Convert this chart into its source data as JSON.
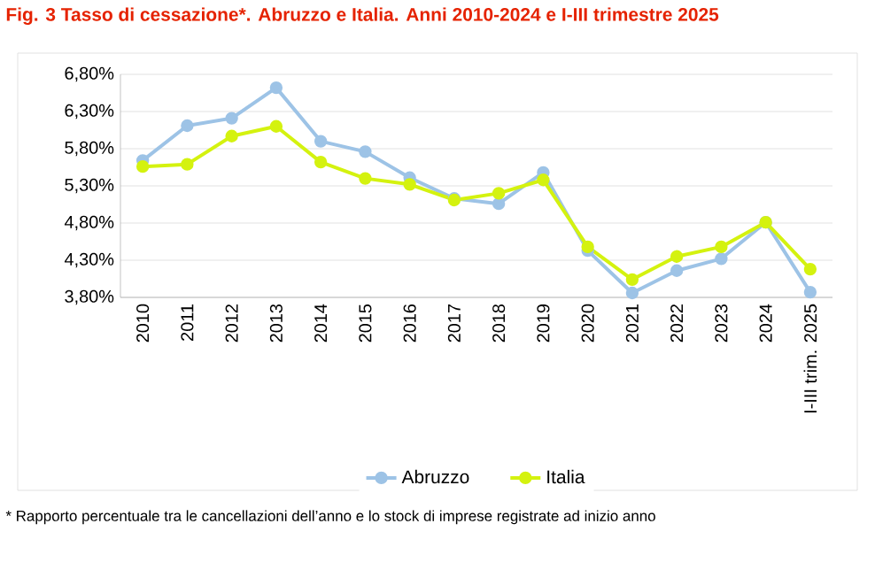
{
  "chart_data": {
    "type": "line",
    "title": "Fig. 3 Tasso di cessazione*. Abruzzo e Italia. Anni 2010-2024 e I-III trimestre 2025",
    "categories": [
      "2010",
      "2011",
      "2012",
      "2013",
      "2014",
      "2015",
      "2016",
      "2017",
      "2018",
      "2019",
      "2020",
      "2021",
      "2022",
      "2023",
      "2024",
      "I-III trim. 2025"
    ],
    "series": [
      {
        "name": "Abruzzo",
        "color": "#9dc3e6",
        "values": [
          5.64,
          6.11,
          6.21,
          6.62,
          5.9,
          5.76,
          5.41,
          5.13,
          5.06,
          5.48,
          4.43,
          3.86,
          4.16,
          4.32,
          4.81,
          3.87
        ]
      },
      {
        "name": "Italia",
        "color": "#d4f20f",
        "values": [
          5.56,
          5.59,
          5.97,
          6.1,
          5.62,
          5.4,
          5.32,
          5.11,
          5.2,
          5.38,
          4.48,
          4.04,
          4.35,
          4.48,
          4.81,
          4.18
        ]
      }
    ],
    "ylim": [
      3.8,
      6.8
    ],
    "yticks": [
      {
        "value": 3.8,
        "label": "3,80%"
      },
      {
        "value": 4.3,
        "label": "4,30%"
      },
      {
        "value": 4.8,
        "label": "4,80%"
      },
      {
        "value": 5.3,
        "label": "5,30%"
      },
      {
        "value": 5.8,
        "label": "5,80%"
      },
      {
        "value": 6.3,
        "label": "6,30%"
      },
      {
        "value": 6.8,
        "label": "6,80%"
      }
    ],
    "grid": "y",
    "legend": "bottom",
    "marker": "circle",
    "line_style": "solid",
    "annotations": [
      "* Rapporto percentuale tra le cancellazioni dell’anno e lo stock di imprese registrate ad inizio anno"
    ]
  }
}
